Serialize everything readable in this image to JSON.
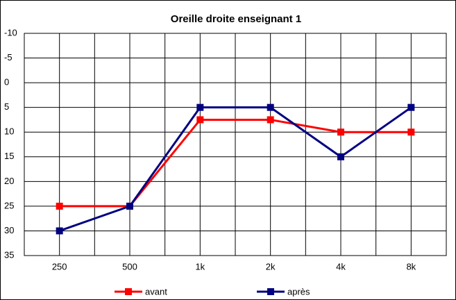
{
  "chart_data": {
    "type": "line",
    "title": "Oreille droite enseignant 1",
    "categories": [
      "250",
      "500",
      "1k",
      "2k",
      "4k",
      "8k"
    ],
    "series": [
      {
        "name": "avant",
        "color": "#ff0000",
        "values": [
          25,
          25,
          7.5,
          7.5,
          10,
          10
        ]
      },
      {
        "name": "après",
        "color": "#000080",
        "values": [
          30,
          25,
          5,
          5,
          15,
          5
        ]
      }
    ],
    "ylim": [
      -10,
      35
    ],
    "y_inverted": true,
    "yticks": [
      -10,
      -5,
      0,
      5,
      10,
      15,
      20,
      25,
      30,
      35
    ],
    "grid": true,
    "legend": "bottom"
  }
}
